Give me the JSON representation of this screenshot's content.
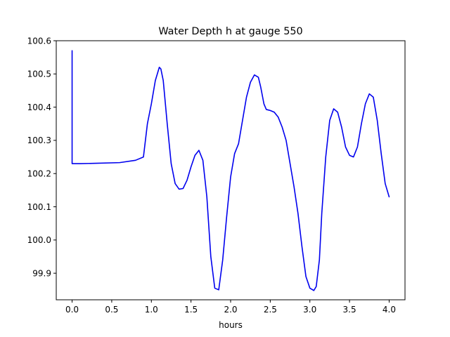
{
  "chart_data": {
    "type": "line",
    "title": "Water Depth h at gauge 550",
    "xlabel": "hours",
    "ylabel": "",
    "xlim": [
      -0.2,
      4.2
    ],
    "ylim": [
      99.82,
      100.6
    ],
    "grid": false,
    "legend": "none",
    "x_ticks": [
      0.0,
      0.5,
      1.0,
      1.5,
      2.0,
      2.5,
      3.0,
      3.5,
      4.0
    ],
    "x_tick_labels": [
      "0.0",
      "0.5",
      "1.0",
      "1.5",
      "2.0",
      "2.5",
      "3.0",
      "3.5",
      "4.0"
    ],
    "y_ticks": [
      99.9,
      100.0,
      100.1,
      100.2,
      100.3,
      100.4,
      100.5,
      100.6
    ],
    "y_tick_labels": [
      "99.9",
      "100.0",
      "100.1",
      "100.2",
      "100.3",
      "100.4",
      "100.5",
      "100.6"
    ],
    "colors": {
      "line": "#0000ee",
      "axes": "#000000",
      "background": "#ffffff"
    },
    "series": [
      {
        "x": [
          0.0,
          0.0,
          0.1,
          0.3,
          0.6,
          0.8,
          0.9,
          0.95,
          1.0,
          1.05,
          1.1,
          1.12,
          1.15,
          1.2,
          1.25,
          1.3,
          1.35,
          1.4,
          1.45,
          1.5,
          1.55,
          1.6,
          1.65,
          1.7,
          1.75,
          1.8,
          1.85,
          1.9,
          1.95,
          2.0,
          2.05,
          2.1,
          2.15,
          2.2,
          2.25,
          2.3,
          2.35,
          2.38,
          2.42,
          2.45,
          2.5,
          2.55,
          2.6,
          2.65,
          2.7,
          2.75,
          2.8,
          2.85,
          2.9,
          2.95,
          3.0,
          3.05,
          3.08,
          3.12,
          3.15,
          3.2,
          3.25,
          3.3,
          3.35,
          3.4,
          3.45,
          3.5,
          3.55,
          3.6,
          3.65,
          3.7,
          3.75,
          3.8,
          3.85,
          3.9,
          3.95,
          4.0
        ],
        "y": [
          100.57,
          100.23,
          100.23,
          100.231,
          100.233,
          100.24,
          100.25,
          100.35,
          100.41,
          100.48,
          100.52,
          100.515,
          100.48,
          100.35,
          100.23,
          100.17,
          100.153,
          100.155,
          100.18,
          100.22,
          100.255,
          100.27,
          100.24,
          100.13,
          99.95,
          99.855,
          99.85,
          99.94,
          100.07,
          100.19,
          100.26,
          100.29,
          100.36,
          100.43,
          100.475,
          100.497,
          100.49,
          100.46,
          100.41,
          100.393,
          100.39,
          100.385,
          100.37,
          100.34,
          100.3,
          100.23,
          100.16,
          100.08,
          99.98,
          99.89,
          99.855,
          99.848,
          99.86,
          99.94,
          100.08,
          100.25,
          100.36,
          100.395,
          100.385,
          100.34,
          100.28,
          100.255,
          100.25,
          100.28,
          100.35,
          100.41,
          100.44,
          100.43,
          100.36,
          100.26,
          100.17,
          100.13
        ]
      }
    ]
  }
}
